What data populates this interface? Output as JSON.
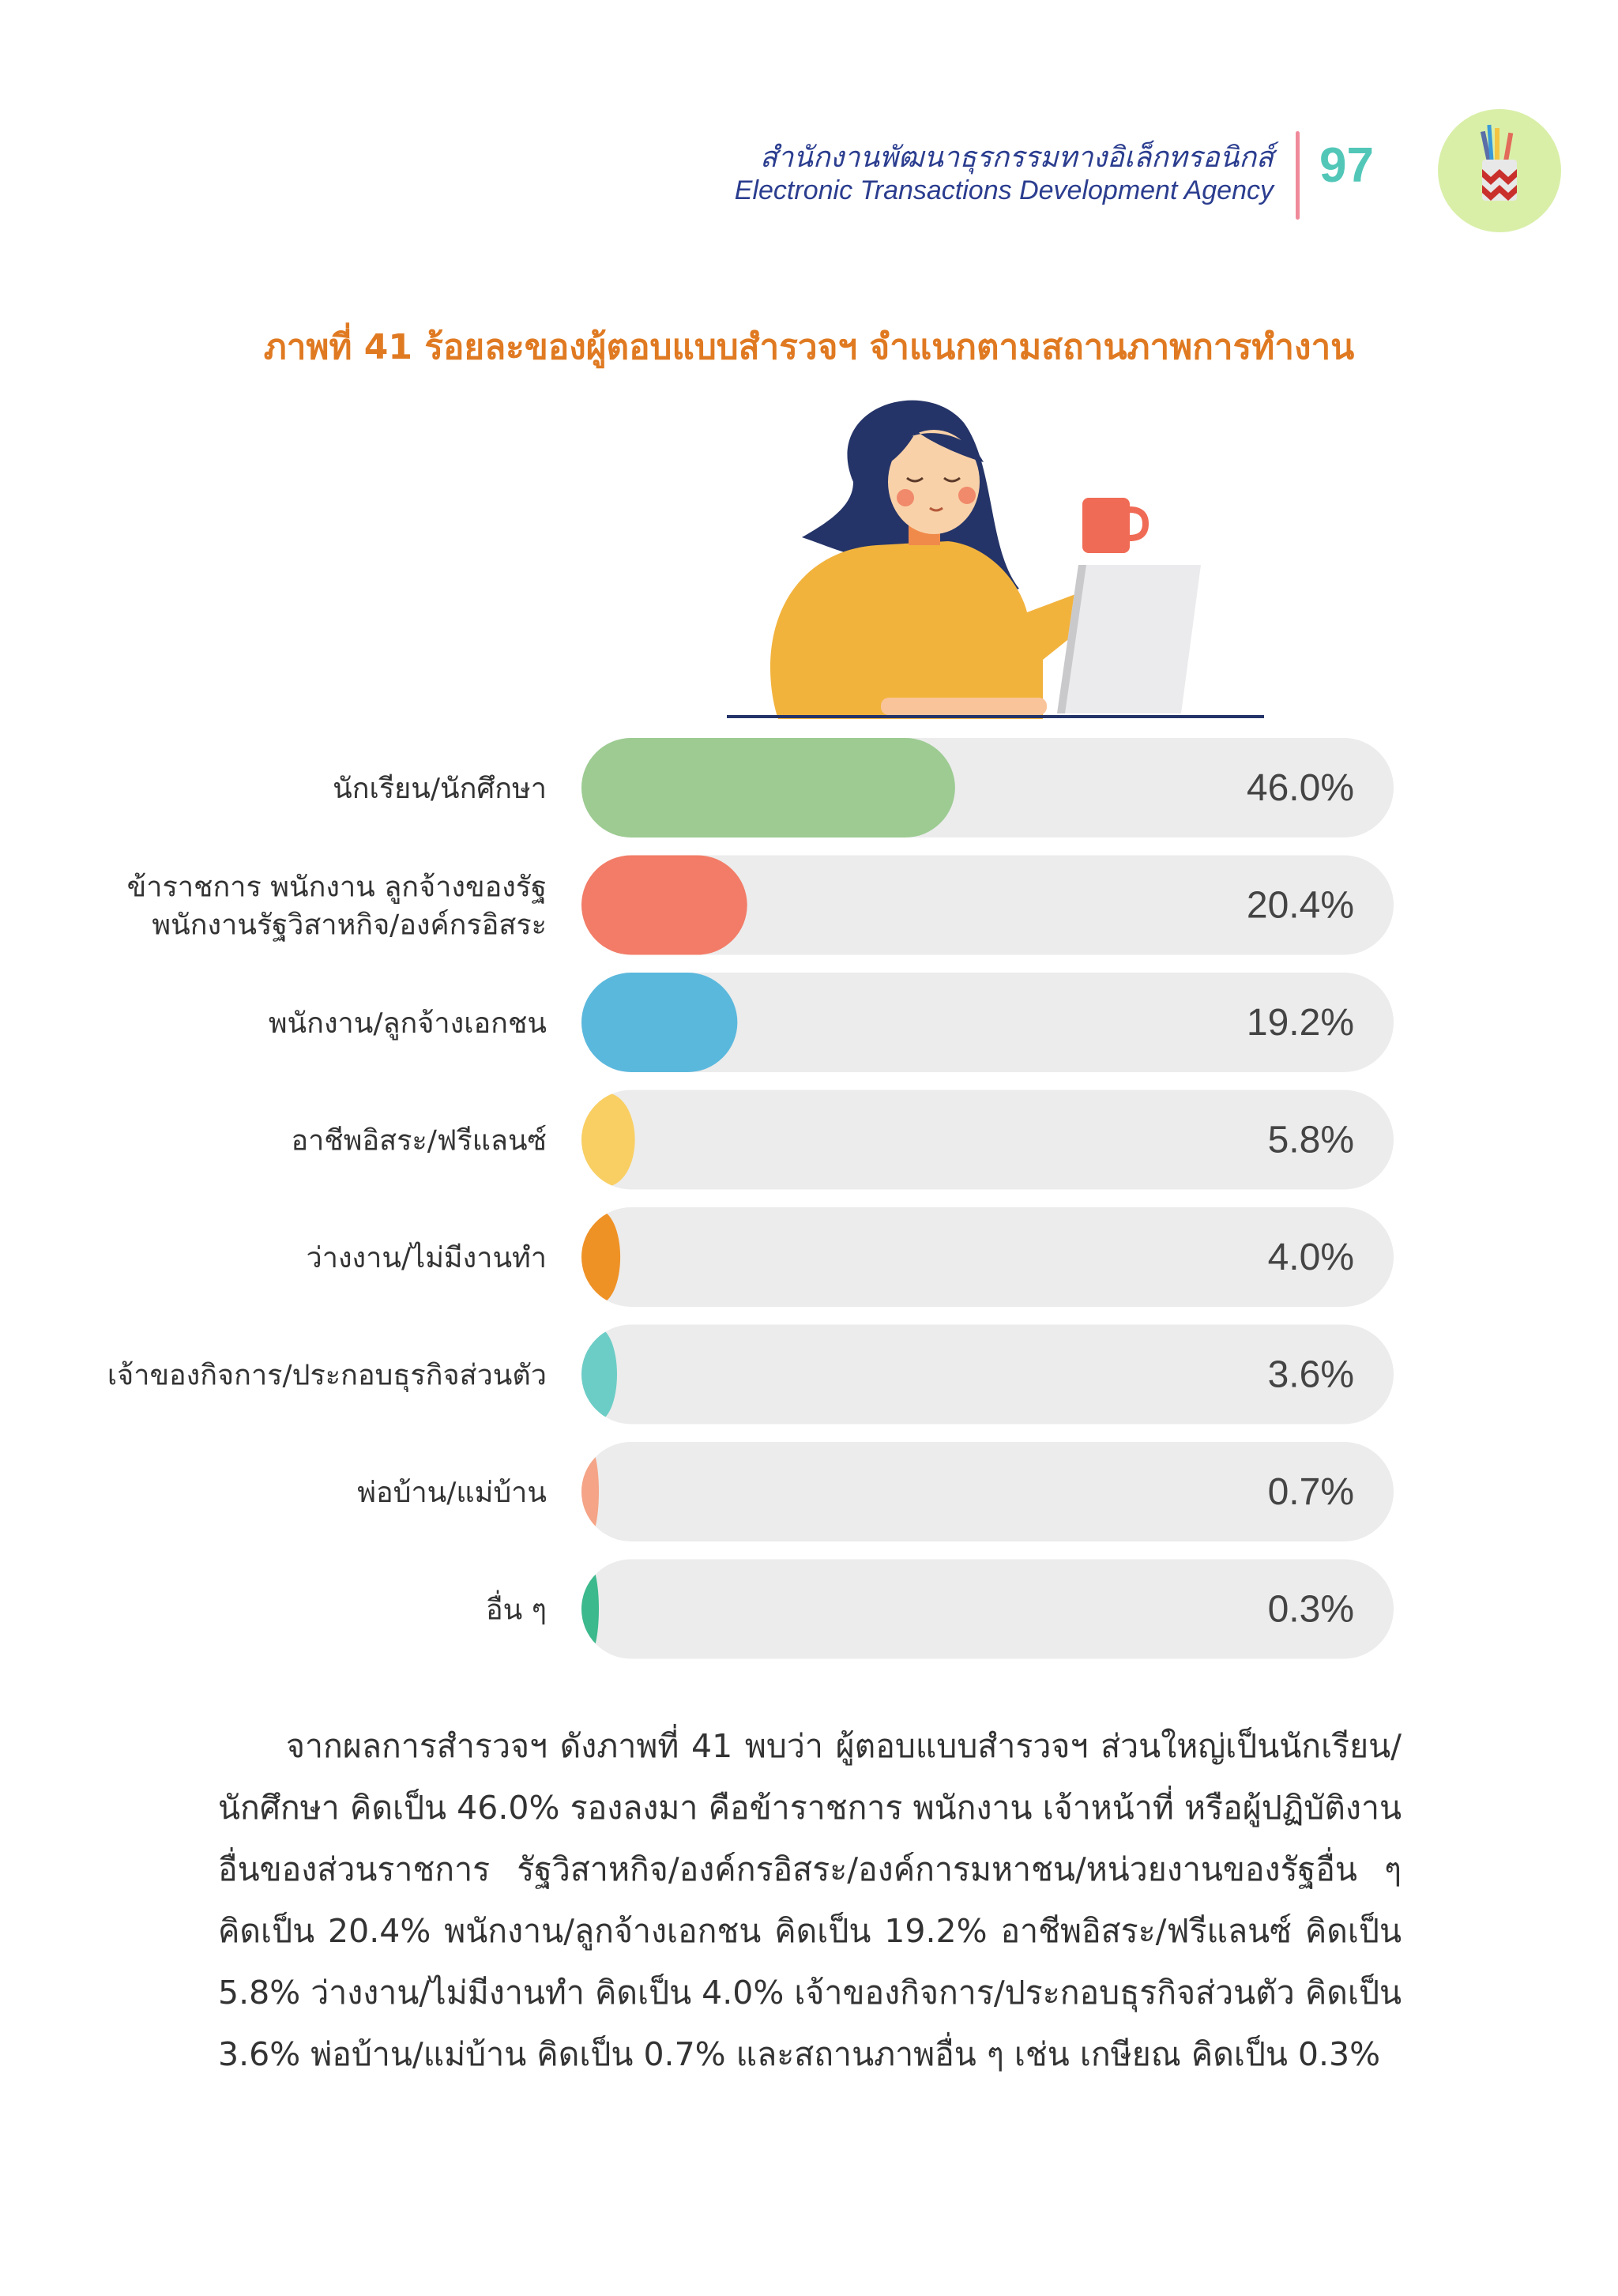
{
  "header": {
    "agency_th": "สำนักงานพัฒนาธุรกรรมทางอิเล็กทรอนิกส์",
    "agency_en": "Electronic Transactions Development Agency",
    "page_number": "97"
  },
  "figure_title": "ภาพที่ 41 ร้อยละของผู้ตอบแบบสำรวจฯ จำแนกตามสถานภาพการทำงาน",
  "illustration_icon": "woman-with-laptop-and-mug-illustration",
  "badge_icon": "pencil-cup-icon",
  "chart_data": {
    "type": "bar",
    "orientation": "horizontal",
    "categories": [
      [
        "นักเรียน/นักศึกษา"
      ],
      [
        "ข้าราชการ พนักงาน ลูกจ้างของรัฐ",
        "พนักงานรัฐวิสาหกิจ/องค์กรอิสระ"
      ],
      [
        "พนักงาน/ลูกจ้างเอกชน"
      ],
      [
        "อาชีพอิสระ/ฟรีแลนซ์"
      ],
      [
        "ว่างงาน/ไม่มีงานทำ"
      ],
      [
        "เจ้าของกิจการ/ประกอบธุรกิจส่วนตัว"
      ],
      [
        "พ่อบ้าน/แม่บ้าน"
      ],
      [
        "อื่น ๆ"
      ]
    ],
    "values": [
      46.0,
      20.4,
      19.2,
      5.8,
      4.0,
      3.6,
      0.7,
      0.3
    ],
    "value_labels": [
      "46.0%",
      "20.4%",
      "19.2%",
      "5.8%",
      "4.0%",
      "3.6%",
      "0.7%",
      "0.3%"
    ],
    "colors": [
      "#9dcb92",
      "#f27c67",
      "#5bb8dd",
      "#f9cf63",
      "#ef9226",
      "#6ccdc6",
      "#f5a487",
      "#3cb98d"
    ],
    "track_color": "#ececec",
    "xlim": [
      0,
      100
    ],
    "title": "",
    "xlabel": "",
    "ylabel": ""
  },
  "paragraph": "จากผลการสำรวจฯ ดังภาพที่ 41 พบว่า ผู้ตอบแบบสำรวจฯ ส่วนใหญ่เป็นนักเรียน/นักศึกษา คิดเป็น 46.0% รองลงมา คือข้าราชการ พนักงาน เจ้าหน้าที่ หรือผู้ปฏิบัติงานอื่นของส่วนราชการ รัฐวิสาหกิจ/องค์กรอิสระ/องค์การมหาชน/หน่วยงานของรัฐอื่น ๆ คิดเป็น 20.4% พนักงาน/ลูกจ้างเอกชน คิดเป็น 19.2% อาชีพอิสระ/ฟรีแลนซ์ คิดเป็น 5.8% ว่างงาน/ไม่มีงานทำ คิดเป็น 4.0% เจ้าของกิจการ/ประกอบธุรกิจส่วนตัว คิดเป็น 3.6% พ่อบ้าน/แม่บ้าน คิดเป็น 0.7% และสถานภาพอื่น ๆ เช่น เกษียณ คิดเป็น 0.3%"
}
